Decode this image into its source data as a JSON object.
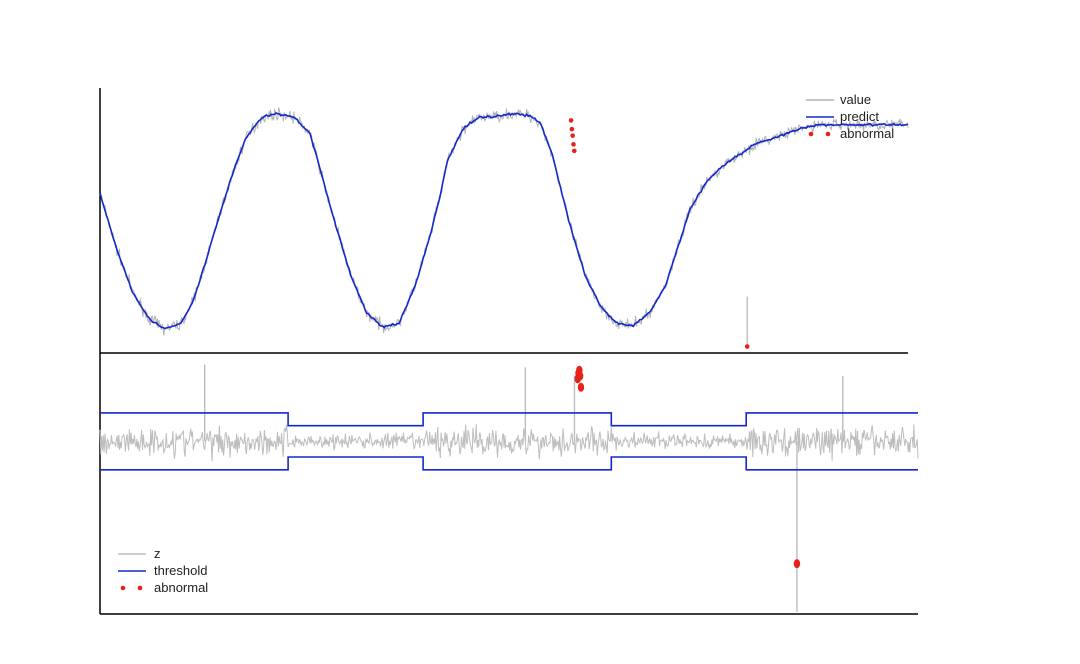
{
  "chart_data": [
    {
      "type": "line",
      "panel": "top",
      "title": "",
      "xlabel": "",
      "ylabel": "",
      "x_range": [
        0,
        1000
      ],
      "y_range": [
        -1.1,
        1.2
      ],
      "grid": false,
      "legend_placement": "top-right",
      "legend": [
        "value",
        "predict",
        "abnormal"
      ],
      "colors": {
        "value": "#b3b3b3",
        "predict": "#1228cc",
        "abnormal": "#e8211b"
      },
      "series": [
        {
          "name": "predict",
          "style": "line",
          "x": [
            0,
            20,
            40,
            60,
            80,
            100,
            115,
            130,
            150,
            165,
            180,
            200,
            220,
            240,
            260,
            275,
            290,
            310,
            330,
            350,
            370,
            390,
            410,
            420,
            430,
            450,
            470,
            490,
            510,
            530,
            545,
            560,
            580,
            600,
            620,
            640,
            660,
            680,
            700,
            715,
            730,
            750,
            770,
            790,
            810,
            830,
            850,
            870,
            890,
            1000
          ],
          "y": [
            0.25,
            -0.25,
            -0.65,
            -0.9,
            -1.0,
            -0.95,
            -0.75,
            -0.4,
            0.1,
            0.45,
            0.75,
            0.95,
            0.98,
            0.95,
            0.8,
            0.4,
            0.0,
            -0.5,
            -0.85,
            -0.98,
            -0.95,
            -0.6,
            -0.1,
            0.2,
            0.55,
            0.85,
            0.95,
            0.96,
            0.98,
            0.97,
            0.9,
            0.6,
            0.0,
            -0.5,
            -0.8,
            -0.95,
            -0.97,
            -0.85,
            -0.6,
            -0.25,
            0.1,
            0.35,
            0.5,
            0.6,
            0.7,
            0.75,
            0.8,
            0.85,
            0.88,
            0.88
          ]
        },
        {
          "name": "value",
          "style": "noisy-line",
          "follows": "predict",
          "noise_amplitude": 0.04
        },
        {
          "name": "abnormal",
          "style": "scatter",
          "x": [
            583,
            584,
            585,
            586,
            587,
            801
          ],
          "y": [
            0.92,
            0.84,
            0.78,
            0.7,
            0.64,
            -1.16
          ]
        }
      ]
    },
    {
      "type": "line",
      "panel": "bottom",
      "title": "",
      "xlabel": "",
      "ylabel": "",
      "x_range": [
        0,
        1000
      ],
      "y_range": [
        -6,
        3
      ],
      "grid": false,
      "legend_placement": "bottom-left",
      "legend": [
        "z",
        "threshold",
        "abnormal"
      ],
      "colors": {
        "z": "#bdbdbd",
        "threshold": "#1228cc",
        "abnormal": "#e8211b"
      },
      "series": [
        {
          "name": "threshold",
          "style": "band",
          "segments": [
            {
              "x0": 0,
              "x1": 230,
              "upper": 1.0,
              "lower": -1.0
            },
            {
              "x0": 230,
              "x1": 395,
              "upper": 0.55,
              "lower": -0.55
            },
            {
              "x0": 395,
              "x1": 625,
              "upper": 1.0,
              "lower": -1.0
            },
            {
              "x0": 625,
              "x1": 790,
              "upper": 0.55,
              "lower": -0.55
            },
            {
              "x0": 790,
              "x1": 1000,
              "upper": 1.0,
              "lower": -1.0
            }
          ]
        },
        {
          "name": "z",
          "style": "noisy-line",
          "follows": "zero",
          "spikes": [
            {
              "x": 128,
              "y": 2.7
            },
            {
              "x": 520,
              "y": 2.6
            },
            {
              "x": 580,
              "y": 2.3
            },
            {
              "x": 908,
              "y": 2.3
            },
            {
              "x": 852,
              "y": -6.0
            }
          ]
        },
        {
          "name": "abnormal",
          "style": "scatter",
          "x": [
            584,
            585,
            586,
            587,
            588,
            852
          ],
          "y": [
            2.2,
            2.4,
            2.5,
            2.3,
            1.9,
            -4.3
          ]
        }
      ]
    }
  ]
}
